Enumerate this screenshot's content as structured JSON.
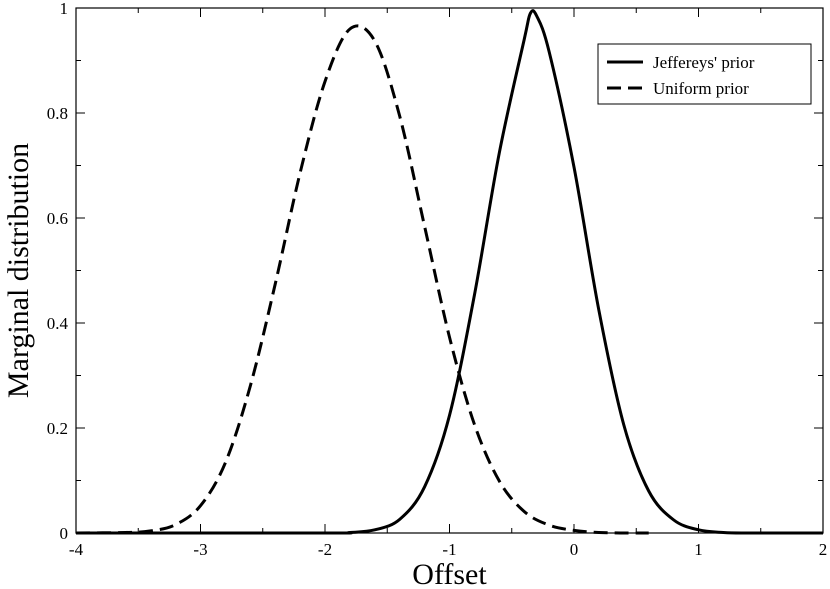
{
  "chart_data": {
    "type": "line",
    "title": "",
    "xlabel": "Offset",
    "ylabel": "Marginal distribution",
    "xlim": [
      -4,
      2
    ],
    "ylim": [
      0,
      1
    ],
    "x_ticks": [
      -4,
      -3,
      -2,
      -1,
      0,
      1,
      2
    ],
    "x_tick_labels": [
      "-4",
      "-3",
      "-2",
      "-1",
      "0",
      "1",
      "2"
    ],
    "y_ticks": [
      0,
      0.2,
      0.4,
      0.6,
      0.8,
      1
    ],
    "y_tick_labels": [
      "0",
      "0.2",
      "0.4",
      "0.6",
      "0.8",
      "1"
    ],
    "grid": false,
    "legend_position": "top-right",
    "series": [
      {
        "name": "Jeffereys' prior",
        "style": "solid",
        "color": "#000000",
        "points": [
          [
            -4.0,
            0
          ],
          [
            -2.0,
            0
          ],
          [
            -1.8,
            0.001
          ],
          [
            -1.6,
            0.006
          ],
          [
            -1.4,
            0.026
          ],
          [
            -1.2,
            0.088
          ],
          [
            -1.0,
            0.224
          ],
          [
            -0.8,
            0.453
          ],
          [
            -0.6,
            0.724
          ],
          [
            -0.4,
            0.94
          ],
          [
            -0.35,
            0.99
          ],
          [
            -0.3,
            0.985
          ],
          [
            -0.2,
            0.917
          ],
          [
            0.0,
            0.697
          ],
          [
            0.2,
            0.424
          ],
          [
            0.4,
            0.206
          ],
          [
            0.6,
            0.08
          ],
          [
            0.8,
            0.025
          ],
          [
            1.0,
            0.006
          ],
          [
            1.2,
            0.001
          ],
          [
            1.4,
            0
          ],
          [
            2.0,
            0
          ]
        ]
      },
      {
        "name": "Uniform prior",
        "style": "dashed",
        "color": "#000000",
        "points": [
          [
            -4.0,
            0
          ],
          [
            -3.6,
            0.001
          ],
          [
            -3.4,
            0.004
          ],
          [
            -3.2,
            0.016
          ],
          [
            -3.0,
            0.052
          ],
          [
            -2.8,
            0.134
          ],
          [
            -2.6,
            0.28
          ],
          [
            -2.4,
            0.474
          ],
          [
            -2.2,
            0.686
          ],
          [
            -2.0,
            0.86
          ],
          [
            -1.8,
            0.96
          ],
          [
            -1.6,
            0.937
          ],
          [
            -1.4,
            0.794
          ],
          [
            -1.2,
            0.584
          ],
          [
            -1.0,
            0.373
          ],
          [
            -0.8,
            0.207
          ],
          [
            -0.6,
            0.099
          ],
          [
            -0.4,
            0.041
          ],
          [
            -0.2,
            0.015
          ],
          [
            0.0,
            0.005
          ],
          [
            0.2,
            0.001
          ],
          [
            0.4,
            0
          ],
          [
            0.6,
            0
          ]
        ]
      }
    ]
  }
}
